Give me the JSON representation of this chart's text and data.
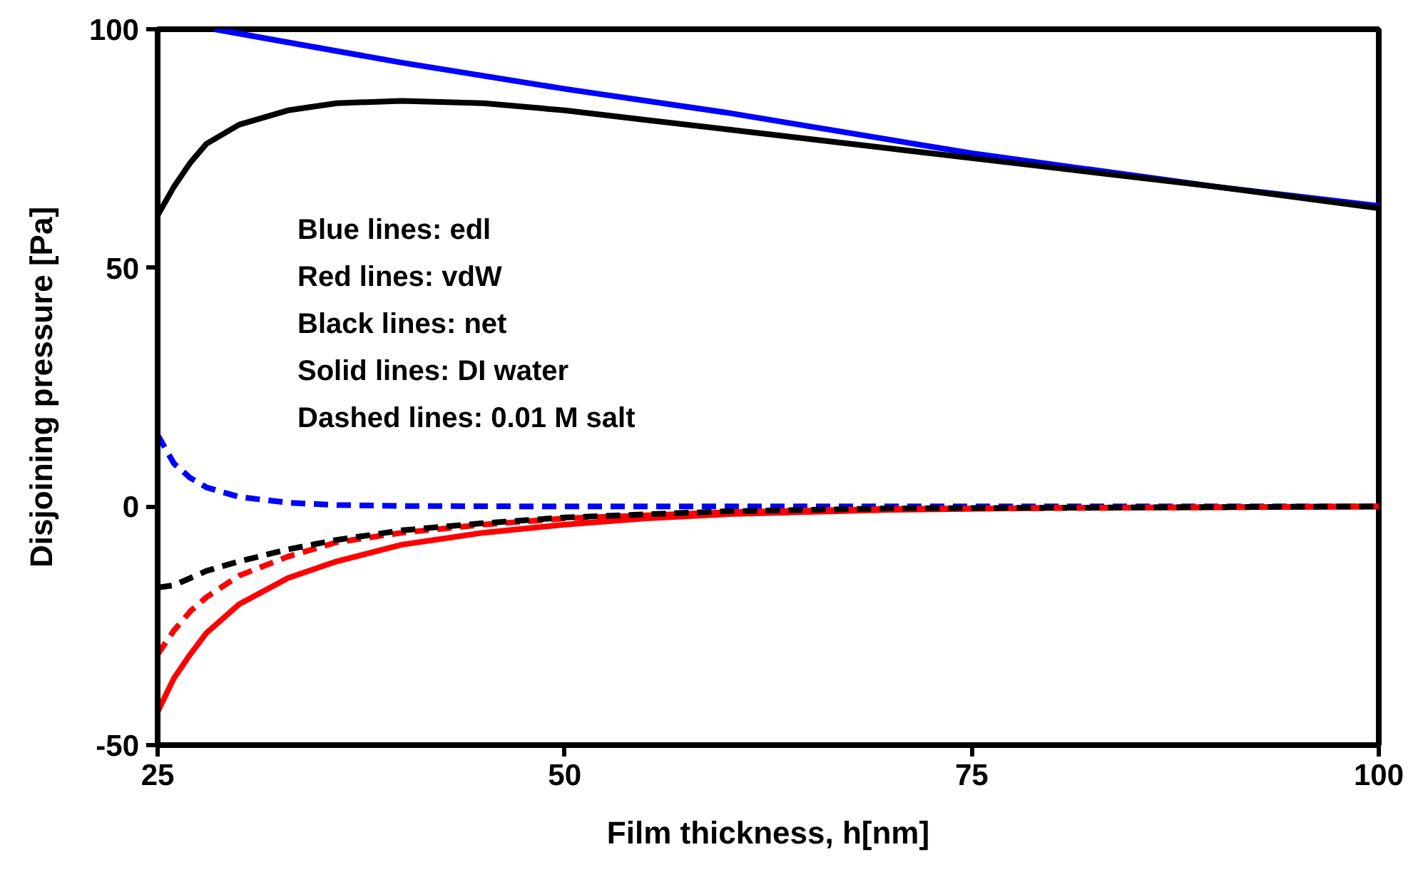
{
  "chart_data": {
    "type": "line",
    "xlabel": "Film thickness, h[nm]",
    "ylabel": "Disjoining pressure [Pa]",
    "xlim": [
      25,
      100
    ],
    "ylim": [
      -50,
      100
    ],
    "xticks": [
      25,
      50,
      75,
      100
    ],
    "yticks": [
      -50,
      0,
      50,
      100
    ],
    "grid": false,
    "marker": "none",
    "annotations": [
      "Blue lines: edl",
      "Red lines: vdW",
      "Black lines: net",
      "Solid lines: DI water",
      "Dashed lines: 0.01 M salt"
    ],
    "series": [
      {
        "color": "#0000ff",
        "line_style": "solid",
        "x": [
          28.5,
          40,
          50,
          60,
          75,
          90,
          100
        ],
        "values": [
          100,
          93,
          87.5,
          82.5,
          74,
          67,
          63
        ]
      },
      {
        "color": "#000000",
        "line_style": "solid",
        "x": [
          25,
          26,
          27,
          28,
          30,
          33,
          36,
          40,
          45,
          50,
          55,
          60,
          70,
          80,
          90,
          100
        ],
        "values": [
          61,
          67,
          72,
          76,
          80,
          83,
          84.5,
          85,
          84.5,
          83,
          81,
          79,
          75,
          71,
          67,
          62.5
        ]
      },
      {
        "color": "#0000ff",
        "line_style": "dashed",
        "x": [
          25,
          26,
          27,
          28,
          30,
          33,
          36,
          40,
          50,
          75,
          100
        ],
        "values": [
          15,
          9,
          6,
          4,
          2,
          0.8,
          0.3,
          0.1,
          0,
          0,
          0
        ]
      },
      {
        "color": "#ff0000",
        "line_style": "solid",
        "x": [
          25,
          26,
          27,
          28,
          30,
          33,
          36,
          40,
          45,
          50,
          55,
          60,
          70,
          80,
          100
        ],
        "values": [
          -43,
          -36,
          -31,
          -26.5,
          -20.5,
          -15,
          -11.5,
          -8,
          -5.5,
          -3.8,
          -2.5,
          -1.6,
          -0.7,
          -0.3,
          0
        ]
      },
      {
        "color": "#ff0000",
        "line_style": "dashed",
        "x": [
          25,
          26,
          27,
          28,
          30,
          33,
          36,
          40,
          45,
          50,
          60,
          70,
          100
        ],
        "values": [
          -31,
          -26,
          -22,
          -19,
          -14.5,
          -10.5,
          -7.5,
          -5.5,
          -3.8,
          -2.5,
          -1.2,
          -0.5,
          0
        ]
      },
      {
        "color": "#000000",
        "line_style": "dashed",
        "x": [
          25,
          26,
          27,
          28,
          30,
          33,
          36,
          40,
          45,
          50,
          60,
          70,
          100
        ],
        "values": [
          -17,
          -16.5,
          -15,
          -13.5,
          -11.5,
          -9,
          -7,
          -5,
          -3.5,
          -2.3,
          -1,
          -0.4,
          0
        ]
      }
    ]
  }
}
